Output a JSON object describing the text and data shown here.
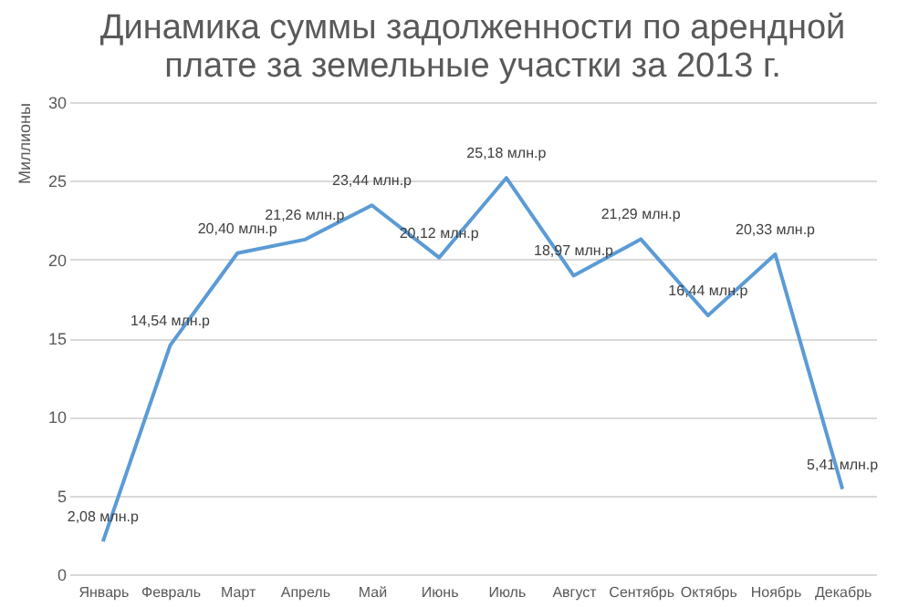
{
  "chart_data": {
    "type": "line",
    "title": "Динамика суммы задолженности по арендной плате за земельные участки за 2013 г.",
    "ylabel": "Миллионы",
    "categories": [
      "Январь",
      "Февраль",
      "Март",
      "Апрель",
      "Май",
      "Июнь",
      "Июль",
      "Август",
      "Сентябрь",
      "Октябрь",
      "Ноябрь",
      "Декабрь"
    ],
    "series": [
      {
        "color": "#5b9bd5",
        "values": [
          2.08,
          14.54,
          20.4,
          21.26,
          23.44,
          20.12,
          25.18,
          18.97,
          21.29,
          16.44,
          20.33,
          5.41
        ],
        "value_labels": [
          "2,08 млн.р",
          "14,54 млн.р",
          "20,40 млн.р",
          "21,26 млн.р",
          "23,44 млн.р",
          "20,12 млн.р",
          "25,18 млн.р",
          "18,97 млн.р",
          "21,29 млн.р",
          "16,44 млн.р",
          "20,33 млн.р",
          "5,41 млн.р"
        ]
      }
    ],
    "ylim": [
      0,
      30
    ],
    "yticks": [
      0,
      5,
      10,
      15,
      20,
      25,
      30
    ],
    "grid": "y"
  }
}
